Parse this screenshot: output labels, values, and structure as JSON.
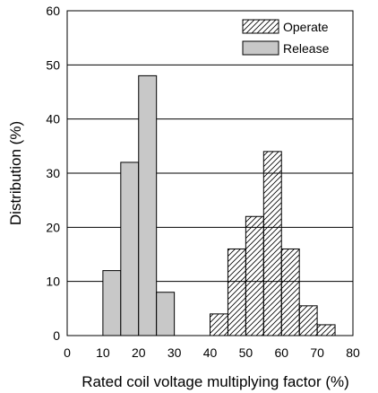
{
  "chart_data": {
    "type": "bar",
    "title": "",
    "xlabel": "Rated coil voltage multiplying factor (%)",
    "ylabel": "Distribution (%)",
    "xlim": [
      0,
      80
    ],
    "ylim": [
      0,
      60
    ],
    "xticks": [
      0,
      10,
      20,
      30,
      40,
      50,
      60,
      70,
      80
    ],
    "yticks": [
      0,
      10,
      20,
      30,
      40,
      50,
      60
    ],
    "grid": "horizontal",
    "legend_position": "top-right",
    "series": [
      {
        "name": "Operate",
        "style": "hatched",
        "bin_width": 5,
        "bin_starts": [
          40,
          45,
          50,
          55,
          60,
          65,
          70
        ],
        "values": [
          4,
          16,
          22,
          34,
          16,
          5.5,
          2
        ]
      },
      {
        "name": "Release",
        "style": "gray",
        "color": "#c8c8c8",
        "bin_width": 5,
        "bin_starts": [
          10,
          15,
          20,
          25
        ],
        "values": [
          12,
          32,
          48,
          8
        ]
      }
    ]
  }
}
